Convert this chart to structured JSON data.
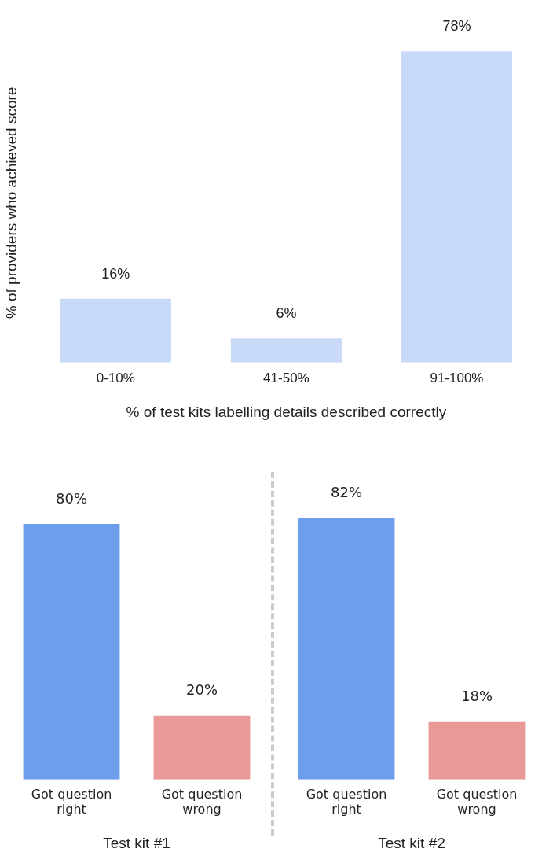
{
  "chart_data": [
    {
      "type": "bar",
      "ylabel": "% of providers who achieved score",
      "xlabel": "% of test kits labelling details described correctly",
      "categories": [
        "0-10%",
        "41-50%",
        "91-100%"
      ],
      "values": [
        16,
        6,
        78
      ],
      "value_labels": [
        "16%",
        "6%",
        "78%"
      ],
      "color": "#c9daf8",
      "tick_labels": "x",
      "grid": false
    },
    {
      "type": "bar",
      "xlabel": "Test kit #1",
      "categories": [
        "Got question right",
        "Got question wrong"
      ],
      "values": [
        80,
        20
      ],
      "value_labels": [
        "80%",
        "20%"
      ],
      "colors": [
        "#6d9eeb",
        "#ea9999"
      ],
      "tick_labels": "x",
      "grid": false
    },
    {
      "type": "bar",
      "xlabel": "Test kit #2",
      "categories": [
        "Got question right",
        "Got question wrong"
      ],
      "values": [
        82,
        18
      ],
      "value_labels": [
        "82%",
        "18%"
      ],
      "colors": [
        "#6d9eeb",
        "#ea9999"
      ],
      "tick_labels": "x",
      "grid": false
    }
  ]
}
